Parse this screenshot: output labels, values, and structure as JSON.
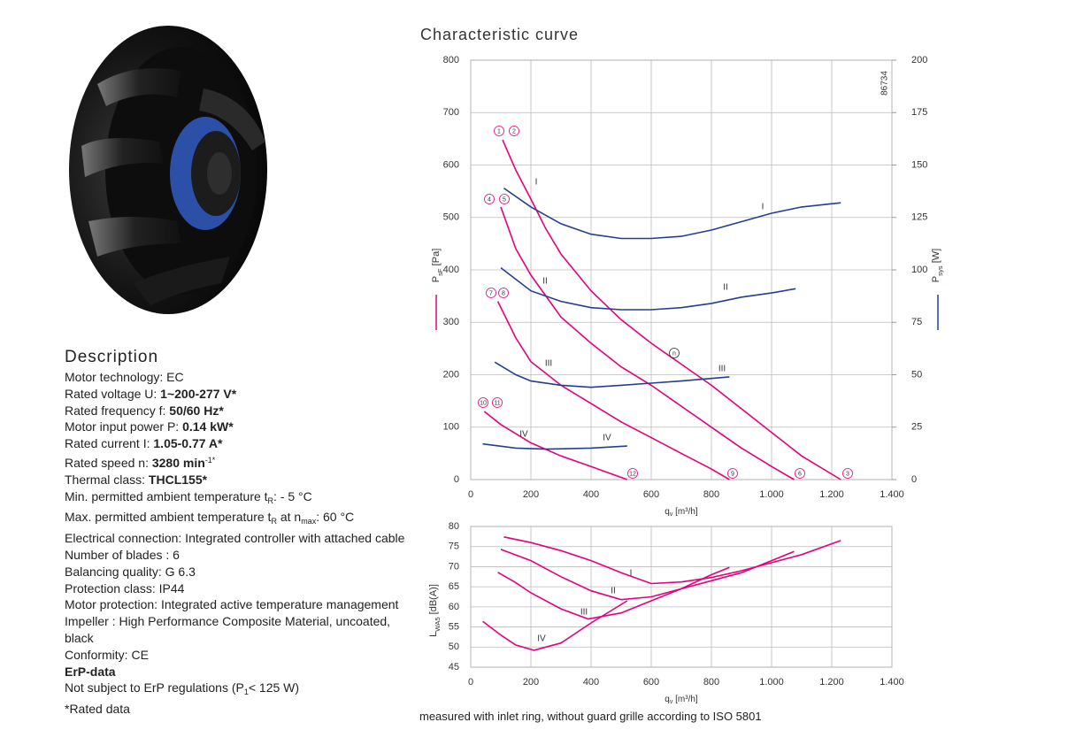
{
  "description": {
    "title": "Description",
    "lines": [
      [
        "Motor technology: EC"
      ],
      [
        "Rated voltage U: ",
        {
          "bold": "1~200-277 V*"
        }
      ],
      [
        "Rated frequency f: ",
        {
          "bold": "50/60 Hz*"
        }
      ],
      [
        "Motor input power P: ",
        {
          "bold": "0.14 kW*"
        }
      ],
      [
        "Rated current I: ",
        {
          "bold": "1.05-0.77 A*"
        }
      ],
      [
        "Rated speed n: ",
        {
          "bold": "3280 min"
        },
        {
          "sup": "-1*"
        }
      ],
      [
        "Thermal class: ",
        {
          "bold": "THCL155*"
        }
      ],
      [
        "Min. permitted ambient temperature t",
        {
          "sub": "R"
        },
        ": - 5 °C"
      ],
      [
        "Max. permitted ambient temperature t",
        {
          "sub": "R"
        },
        " at n",
        {
          "sub": "max"
        },
        ": 60 °C"
      ],
      [
        "Electrical connection: Integrated controller with attached cable"
      ],
      [
        "Number of blades : 6"
      ],
      [
        "Balancing quality: G 6.3"
      ],
      [
        "Protection class: IP44"
      ],
      [
        "Motor protection: Integrated active temperature management"
      ],
      [
        "Impeller : High Performance Composite Material, uncoated, black"
      ],
      [
        "Conformity:  CE"
      ],
      [
        {
          "bold": "ErP-data"
        }
      ],
      [
        "Not subject to ErP regulations (P",
        {
          "sub": "1"
        },
        "< 125 W)"
      ],
      [
        "*Rated data"
      ]
    ]
  },
  "chart_data": [
    {
      "type": "line",
      "title": "Characteristic curve",
      "id_label": "86734",
      "xlabel": [
        "q",
        {
          "sub": "v"
        },
        " [m³/h]"
      ],
      "ylabel": [
        "P",
        {
          "sub": "sF"
        },
        " [Pa]"
      ],
      "y2label": [
        "P",
        {
          "sub": "sys"
        },
        " [W]"
      ],
      "xlim": [
        0,
        1400
      ],
      "xticks": [
        0,
        200,
        400,
        600,
        800,
        {
          "value": 1000,
          "label": "1.000"
        },
        {
          "value": 1200,
          "label": "1.200"
        },
        {
          "value": 1400,
          "label": "1.400"
        }
      ],
      "ylim": [
        0,
        800
      ],
      "yticks": [
        0,
        100,
        200,
        300,
        400,
        500,
        600,
        700,
        800
      ],
      "y2lim": [
        0,
        200
      ],
      "y2ticks": [
        0,
        25,
        50,
        75,
        100,
        125,
        150,
        175,
        200
      ],
      "grid": true,
      "annotations": [
        "1",
        "2",
        "4",
        "5",
        "7",
        "8",
        "10",
        "11",
        "12",
        "9",
        "6",
        "3",
        "n"
      ],
      "series": [
        {
          "name": "I",
          "color": "#e5007d",
          "x": [
            106,
            150,
            200,
            250,
            300,
            400,
            500,
            600,
            700,
            800,
            900,
            1000,
            1100,
            1230
          ],
          "values": [
            648,
            590,
            535,
            478,
            430,
            360,
            305,
            260,
            220,
            180,
            135,
            90,
            45,
            0
          ]
        },
        {
          "name": "II",
          "color": "#e5007d",
          "x": [
            100,
            150,
            200,
            250,
            300,
            400,
            500,
            600,
            700,
            800,
            900,
            1000,
            1075
          ],
          "values": [
            520,
            440,
            390,
            350,
            310,
            260,
            215,
            180,
            140,
            100,
            60,
            25,
            0
          ]
        },
        {
          "name": "III",
          "color": "#e5007d",
          "x": [
            90,
            150,
            200,
            300,
            400,
            500,
            600,
            700,
            800,
            860
          ],
          "values": [
            340,
            270,
            225,
            180,
            145,
            110,
            80,
            50,
            20,
            0
          ]
        },
        {
          "name": "IV",
          "color": "#e5007d",
          "x": [
            45,
            100,
            200,
            300,
            400,
            520
          ],
          "values": [
            130,
            105,
            70,
            45,
            25,
            0
          ]
        },
        {
          "name": "I",
          "color": "#233f94",
          "axis": "y2",
          "x": [
            110,
            200,
            300,
            400,
            500,
            600,
            700,
            800,
            900,
            1000,
            1100,
            1230
          ],
          "values": [
            139,
            130,
            122,
            117,
            115,
            115,
            116,
            119,
            123,
            127,
            130,
            132
          ]
        },
        {
          "name": "II",
          "color": "#233f94",
          "axis": "y2",
          "x": [
            100,
            200,
            300,
            400,
            500,
            600,
            700,
            800,
            900,
            1000,
            1080
          ],
          "values": [
            101,
            90,
            85,
            82,
            81,
            81,
            82,
            84,
            87,
            89,
            91
          ]
        },
        {
          "name": "III",
          "color": "#233f94",
          "axis": "y2",
          "x": [
            80,
            150,
            200,
            300,
            400,
            500,
            600,
            700,
            860
          ],
          "values": [
            56,
            50,
            47,
            45,
            44,
            45,
            46,
            47,
            49
          ]
        },
        {
          "name": "IV",
          "color": "#233f94",
          "axis": "y2",
          "x": [
            40,
            150,
            250,
            400,
            520
          ],
          "values": [
            17,
            15,
            14.5,
            15,
            16
          ]
        }
      ]
    },
    {
      "type": "line",
      "xlabel": [
        "q",
        {
          "sub": "v"
        },
        " [m³/h]"
      ],
      "ylabel": [
        "L",
        {
          "sub": "WA5"
        },
        " [dB(A)]"
      ],
      "xlim": [
        0,
        1400
      ],
      "xticks": [
        0,
        200,
        400,
        600,
        800,
        {
          "value": 1000,
          "label": "1.000"
        },
        {
          "value": 1200,
          "label": "1.200"
        },
        {
          "value": 1400,
          "label": "1.400"
        }
      ],
      "ylim": [
        45,
        80
      ],
      "yticks": [
        45,
        50,
        55,
        60,
        65,
        70,
        75,
        80
      ],
      "grid": true,
      "series": [
        {
          "name": "I",
          "color": "#e5007d",
          "x": [
            110,
            200,
            300,
            400,
            500,
            600,
            700,
            800,
            900,
            1000,
            1100,
            1230
          ],
          "values": [
            77.4,
            76,
            74,
            71.5,
            68.5,
            65.8,
            66.2,
            67.3,
            69,
            71,
            73,
            76.5
          ]
        },
        {
          "name": "II",
          "color": "#e5007d",
          "x": [
            100,
            200,
            300,
            400,
            500,
            600,
            700,
            800,
            900,
            1000,
            1075
          ],
          "values": [
            74.3,
            71.5,
            67.5,
            64,
            61.8,
            62.5,
            64.5,
            66.5,
            68.5,
            71.5,
            73.8
          ]
        },
        {
          "name": "III",
          "color": "#e5007d",
          "x": [
            90,
            150,
            200,
            300,
            390,
            500,
            600,
            700,
            800,
            860
          ],
          "values": [
            68.6,
            66,
            63.5,
            59.5,
            57,
            58.5,
            61.5,
            64.5,
            68,
            69.8
          ]
        },
        {
          "name": "IV",
          "color": "#e5007d",
          "x": [
            40,
            100,
            150,
            210,
            300,
            400,
            520
          ],
          "values": [
            56.4,
            53,
            50.5,
            49.2,
            51,
            56,
            61.5
          ]
        }
      ]
    }
  ],
  "note": "measured with inlet ring, without guard grille according to ISO 5801"
}
